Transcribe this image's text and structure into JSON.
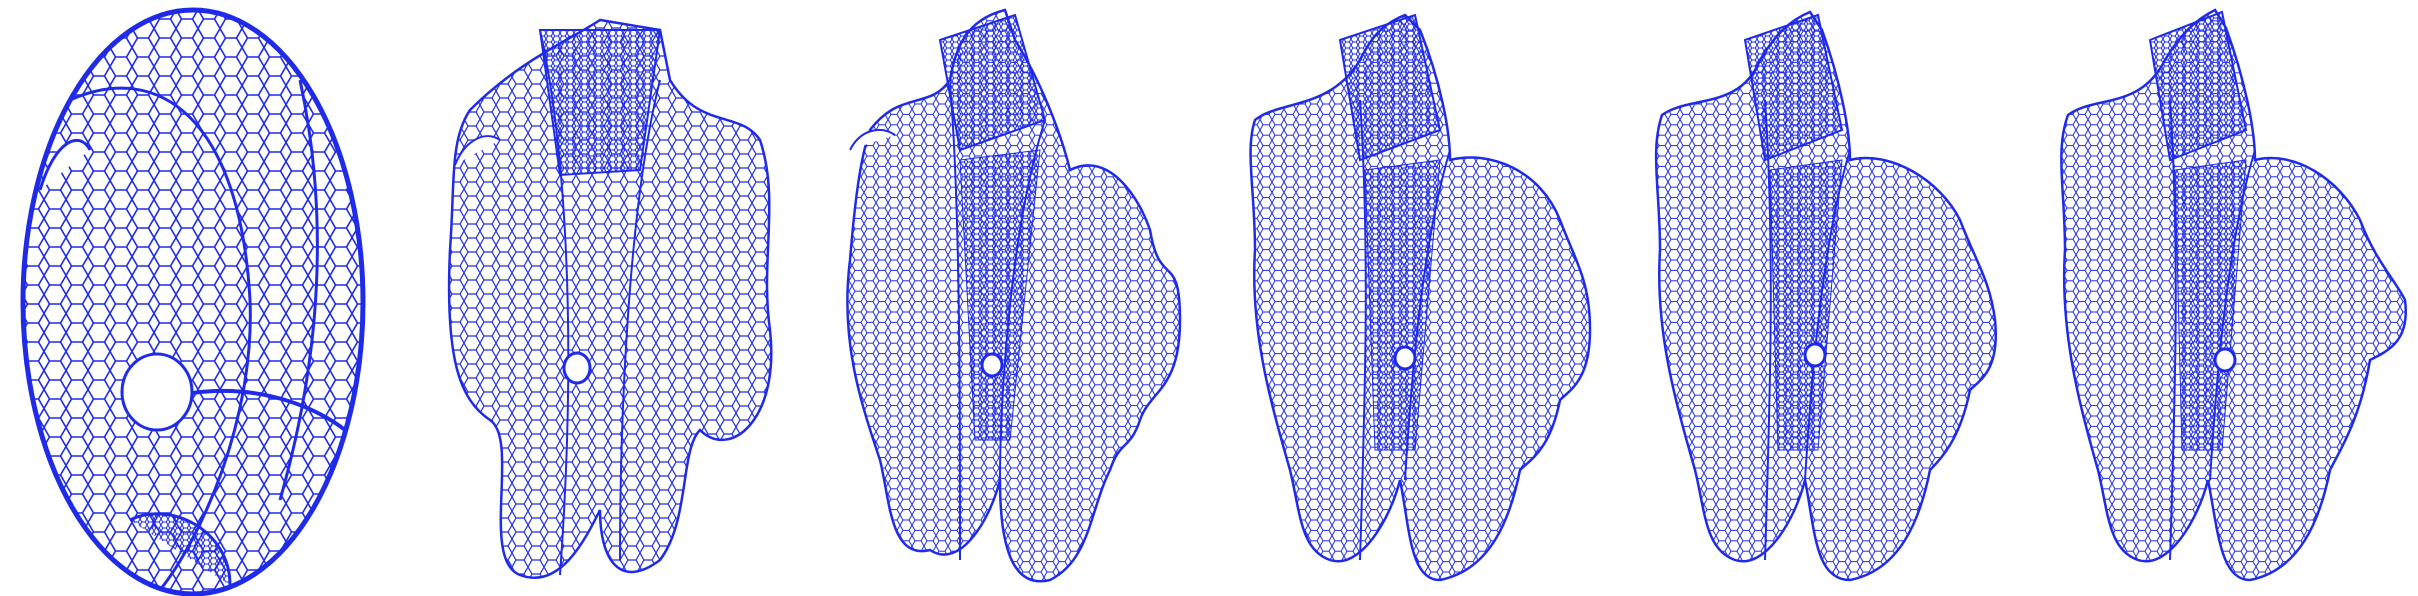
{
  "figure": {
    "background_color": "#ffffff",
    "mesh_color": "#1f2be8",
    "panels": [
      {
        "label": "",
        "stage": 1,
        "shape": "ellipsoid"
      },
      {
        "label": "",
        "stage": 2,
        "shape": "deformed"
      },
      {
        "label": "",
        "stage": 3,
        "shape": "deformed"
      },
      {
        "label": "",
        "stage": 4,
        "shape": "deformed"
      },
      {
        "label": "",
        "stage": 5,
        "shape": "deformed"
      },
      {
        "label": "",
        "stage": 6,
        "shape": "deformed"
      }
    ]
  }
}
